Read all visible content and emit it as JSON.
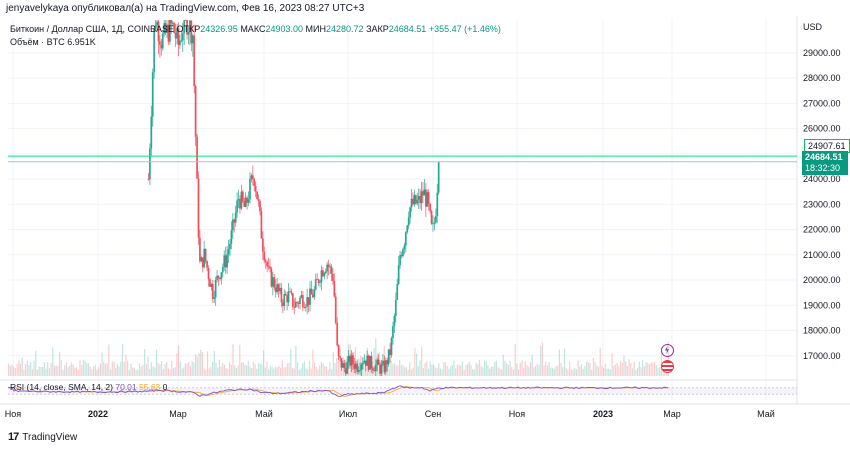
{
  "header": {
    "publisher_line": "jenyavelykaya опубликовал(а) на TradingView.com, Фев 16, 2023 08:27 UTC+3"
  },
  "legend": {
    "symbol": "Биткоин / Доллар США, 1Д, COINBASE",
    "open_label": "ОТКР",
    "open_value": "24326.95",
    "high_label": "МАКС",
    "high_value": "24903.00",
    "low_label": "МИН",
    "low_value": "24280.72",
    "close_label": "ЗАКР",
    "close_value": "24684.51",
    "change": "+355.47 (+1.46%)",
    "volume_label": "Объём · BTC",
    "volume_value": "6.951K"
  },
  "rsi": {
    "label": "RSI (14, close, SMA, 14, 2)",
    "value_rsi": "70.01",
    "value_sma": "55.63",
    "value_extra": "0"
  },
  "price_axis": {
    "currency": "USD",
    "high_marker": "24907.61",
    "last_price": "24684.51",
    "countdown": "18:32:30"
  },
  "footer": {
    "brand": "TradingView"
  },
  "colors": {
    "up": "#089981",
    "down": "#f23645",
    "high_line": "#00e676",
    "rsi_line": "#7e57c2",
    "rsi_sma": "#f9a825"
  },
  "chart_data": {
    "type": "candlestick",
    "title": "Биткоин / Доллар США, 1Д, COINBASE",
    "ylim": [
      16200,
      30300
    ],
    "y_ticks": [
      17000,
      18000,
      19000,
      20000,
      21000,
      22000,
      23000,
      24000,
      25000,
      26000,
      27000,
      28000,
      29000
    ],
    "y_tick_labels": [
      "17000.00",
      "18000.00",
      "19000.00",
      "20000.00",
      "21000.00",
      "22000.00",
      "23000.00",
      "24000.00",
      "25000.00",
      "26000.00",
      "27000.00",
      "28000.00",
      "29000.00"
    ],
    "x_labels": [
      "Ноя",
      "2022",
      "Мар",
      "Май",
      "Июл",
      "Сен",
      "Ноя",
      "2023",
      "Мар",
      "Май"
    ],
    "horizontal_lines": [
      {
        "value": 24907.61,
        "color": "#00e676"
      },
      {
        "value": 24684.51,
        "color": "#9ec5f0"
      }
    ],
    "price_path": [
      {
        "m": 3.15,
        "p": 24000
      },
      {
        "m": 3.3,
        "p": 30500
      },
      {
        "m": 3.45,
        "p": 29500
      },
      {
        "m": 3.7,
        "p": 30100
      },
      {
        "m": 3.85,
        "p": 29300
      },
      {
        "m": 4.0,
        "p": 30400
      },
      {
        "m": 4.18,
        "p": 29800
      },
      {
        "m": 4.3,
        "p": 22500
      },
      {
        "m": 4.35,
        "p": 20500
      },
      {
        "m": 4.45,
        "p": 21000
      },
      {
        "m": 4.55,
        "p": 20200
      },
      {
        "m": 4.65,
        "p": 19500
      },
      {
        "m": 4.8,
        "p": 20300
      },
      {
        "m": 4.95,
        "p": 20800
      },
      {
        "m": 5.1,
        "p": 21900
      },
      {
        "m": 5.25,
        "p": 23300
      },
      {
        "m": 5.4,
        "p": 22800
      },
      {
        "m": 5.5,
        "p": 23600
      },
      {
        "m": 5.6,
        "p": 24200
      },
      {
        "m": 5.7,
        "p": 23100
      },
      {
        "m": 5.8,
        "p": 21500
      },
      {
        "m": 5.95,
        "p": 20200
      },
      {
        "m": 6.1,
        "p": 19800
      },
      {
        "m": 6.25,
        "p": 19200
      },
      {
        "m": 6.4,
        "p": 19400
      },
      {
        "m": 6.55,
        "p": 19000
      },
      {
        "m": 6.7,
        "p": 19300
      },
      {
        "m": 6.85,
        "p": 19200
      },
      {
        "m": 7.0,
        "p": 19500
      },
      {
        "m": 7.15,
        "p": 20300
      },
      {
        "m": 7.3,
        "p": 20700
      },
      {
        "m": 7.45,
        "p": 20100
      },
      {
        "m": 7.55,
        "p": 16900
      },
      {
        "m": 7.7,
        "p": 16500
      },
      {
        "m": 7.85,
        "p": 16800
      },
      {
        "m": 8.0,
        "p": 16600
      },
      {
        "m": 8.15,
        "p": 16900
      },
      {
        "m": 8.3,
        "p": 16700
      },
      {
        "m": 8.45,
        "p": 16600
      },
      {
        "m": 8.55,
        "p": 16500
      },
      {
        "m": 8.65,
        "p": 16550
      },
      {
        "m": 8.78,
        "p": 17200
      },
      {
        "m": 8.9,
        "p": 19000
      },
      {
        "m": 9.0,
        "p": 21000
      },
      {
        "m": 9.1,
        "p": 21600
      },
      {
        "m": 9.2,
        "p": 22800
      },
      {
        "m": 9.3,
        "p": 23000
      },
      {
        "m": 9.45,
        "p": 23100
      },
      {
        "m": 9.55,
        "p": 23500
      },
      {
        "m": 9.65,
        "p": 23000
      },
      {
        "m": 9.75,
        "p": 21800
      },
      {
        "m": 9.82,
        "p": 22500
      },
      {
        "m": 9.9,
        "p": 24685
      }
    ],
    "rsi_line": [
      {
        "m": 0,
        "v": 50
      },
      {
        "m": 1,
        "v": 45
      },
      {
        "m": 2,
        "v": 44
      },
      {
        "m": 3,
        "v": 47
      },
      {
        "m": 3.4,
        "v": 55
      },
      {
        "m": 4.2,
        "v": 40
      },
      {
        "m": 4.35,
        "v": 20
      },
      {
        "m": 4.6,
        "v": 35
      },
      {
        "m": 5.0,
        "v": 55
      },
      {
        "m": 5.5,
        "v": 62
      },
      {
        "m": 5.8,
        "v": 40
      },
      {
        "m": 6.2,
        "v": 35
      },
      {
        "m": 7.0,
        "v": 50
      },
      {
        "m": 7.3,
        "v": 55
      },
      {
        "m": 7.55,
        "v": 15
      },
      {
        "m": 7.8,
        "v": 30
      },
      {
        "m": 8.6,
        "v": 38
      },
      {
        "m": 8.95,
        "v": 80
      },
      {
        "m": 9.2,
        "v": 70
      },
      {
        "m": 9.5,
        "v": 72
      },
      {
        "m": 9.7,
        "v": 50
      },
      {
        "m": 9.9,
        "v": 70
      }
    ]
  }
}
